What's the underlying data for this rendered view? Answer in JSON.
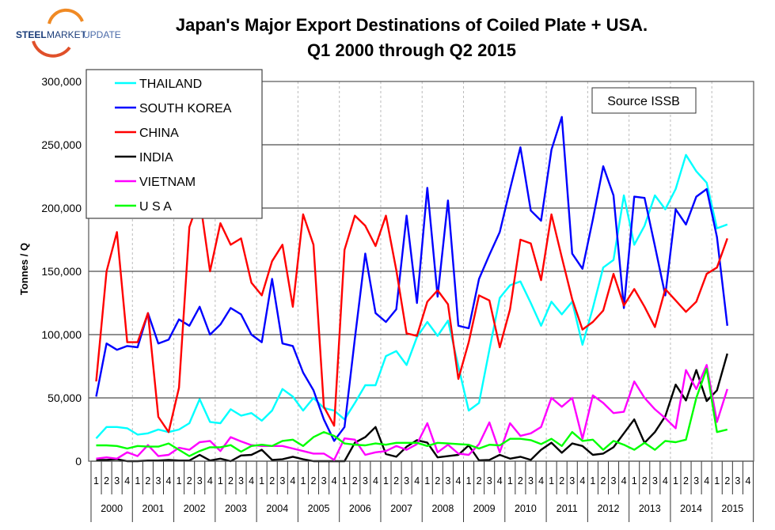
{
  "logo": {
    "text_bold": "STEEL",
    "text_mid": "MARKET",
    "text_light": "UPDATE"
  },
  "chart_data": {
    "type": "line",
    "title": "Japan's Major Export Destinations of Coiled Plate + USA.",
    "subtitle": "Q1 2000 through Q2 2015",
    "ylabel": "Tonnes / Q",
    "xlabel": "",
    "ylim": [
      0,
      300000
    ],
    "yticks": [
      0,
      50000,
      100000,
      150000,
      200000,
      250000,
      300000
    ],
    "ytick_labels": [
      "0",
      "50,000",
      "100,000",
      "150,000",
      "200,000",
      "250,000",
      "300,000"
    ],
    "years": [
      "2000",
      "2001",
      "2002",
      "2003",
      "2004",
      "2005",
      "2006",
      "2007",
      "2008",
      "2009",
      "2010",
      "2011",
      "2012",
      "2013",
      "2014",
      "2015"
    ],
    "quarter_labels": [
      "1",
      "2",
      "3",
      "4"
    ],
    "grid": true,
    "legend_position": "top-left",
    "annotation": "Source ISSB",
    "series": [
      {
        "name": "THAILAND",
        "color": "#00FFFF",
        "values": [
          18000,
          27000,
          27000,
          26000,
          21000,
          22000,
          25000,
          23000,
          25000,
          30000,
          49000,
          31000,
          30000,
          41000,
          36000,
          38000,
          32000,
          40000,
          57000,
          51000,
          40000,
          50000,
          42000,
          40000,
          33000,
          46000,
          60000,
          60000,
          83000,
          87000,
          76000,
          98000,
          110000,
          99000,
          111000,
          75000,
          40000,
          46000,
          88000,
          129000,
          139000,
          142000,
          125000,
          107000,
          126000,
          116000,
          126000,
          92000,
          121000,
          153000,
          159000,
          210000,
          171000,
          186000,
          210000,
          199000,
          215000,
          242000,
          229000,
          220000,
          184000,
          187000
        ]
      },
      {
        "name": "SOUTH KOREA",
        "color": "#0000FF",
        "values": [
          51000,
          93000,
          88000,
          91000,
          90000,
          117000,
          93000,
          96000,
          112000,
          107000,
          122000,
          100000,
          108000,
          121000,
          116000,
          100000,
          94000,
          144000,
          93000,
          91000,
          70000,
          56000,
          33000,
          16000,
          27000,
          97000,
          164000,
          117000,
          110000,
          120000,
          194000,
          125000,
          216000,
          130000,
          206000,
          107000,
          105000,
          144000,
          163000,
          181000,
          215000,
          248000,
          198000,
          190000,
          246000,
          272000,
          164000,
          152000,
          191000,
          233000,
          210000,
          121000,
          209000,
          208000,
          170000,
          131000,
          199000,
          187000,
          209000,
          215000,
          177000,
          107000
        ]
      },
      {
        "name": "CHINA",
        "color": "#FF0000",
        "values": [
          63000,
          150000,
          181000,
          94000,
          94000,
          117000,
          35000,
          23000,
          58000,
          185000,
          208000,
          150000,
          188000,
          171000,
          176000,
          141000,
          131000,
          158000,
          171000,
          122000,
          195000,
          171000,
          43000,
          28000,
          167000,
          194000,
          186000,
          170000,
          194000,
          151000,
          101000,
          99000,
          126000,
          135000,
          124000,
          65000,
          94000,
          131000,
          127000,
          90000,
          120000,
          175000,
          172000,
          143000,
          195000,
          161000,
          128000,
          104000,
          110000,
          119000,
          148000,
          123000,
          136000,
          122000,
          106000,
          136000,
          127000,
          118000,
          126000,
          148000,
          153000,
          176000
        ]
      },
      {
        "name": "INDIA",
        "color": "#000000",
        "values": [
          1000,
          1000,
          1500,
          0,
          0,
          500,
          500,
          1000,
          500,
          500,
          5000,
          500,
          2000,
          0,
          4500,
          5000,
          9000,
          1000,
          1500,
          3500,
          1500,
          0,
          0,
          0,
          0,
          14600,
          19000,
          27000,
          5600,
          3500,
          11400,
          16600,
          14600,
          3000,
          4000,
          5000,
          12500,
          600,
          1000,
          5000,
          2000,
          3500,
          1000,
          9000,
          14600,
          6600,
          14000,
          12000,
          5000,
          6000,
          11000,
          22000,
          33000,
          14500,
          23000,
          35500,
          60500,
          48000,
          72000,
          47500,
          56000,
          85000
        ]
      },
      {
        "name": "VIETNAM",
        "color": "#FF00FF",
        "values": [
          2000,
          3000,
          2000,
          7000,
          4000,
          12700,
          4000,
          5000,
          10600,
          9000,
          15000,
          16000,
          8000,
          19000,
          15600,
          12700,
          12000,
          12000,
          12000,
          10000,
          8000,
          6000,
          6000,
          1000,
          18000,
          17000,
          5000,
          7000,
          8000,
          12000,
          9000,
          13500,
          30000,
          7000,
          13000,
          6000,
          5000,
          13500,
          30600,
          7000,
          30000,
          20000,
          22000,
          27000,
          50000,
          43000,
          50000,
          17700,
          52000,
          46000,
          38000,
          39000,
          63000,
          50000,
          41000,
          34000,
          26000,
          72000,
          57000,
          76000,
          31000,
          57000
        ]
      },
      {
        "name": "U S A",
        "color": "#00FF00",
        "values": [
          12500,
          12500,
          12000,
          10000,
          12000,
          11500,
          11500,
          14000,
          9000,
          4000,
          8000,
          11000,
          11000,
          12700,
          7500,
          12000,
          13000,
          12000,
          16000,
          17000,
          12000,
          19000,
          23000,
          20000,
          14000,
          13000,
          12500,
          14000,
          13000,
          14500,
          14500,
          14500,
          12000,
          14500,
          14000,
          13500,
          13000,
          10000,
          13000,
          12500,
          17700,
          17700,
          16600,
          13500,
          17700,
          12000,
          23000,
          16000,
          17000,
          9000,
          16000,
          13000,
          9000,
          14500,
          9000,
          16000,
          15000,
          17000,
          50000,
          73000,
          23000,
          25000
        ]
      }
    ]
  }
}
